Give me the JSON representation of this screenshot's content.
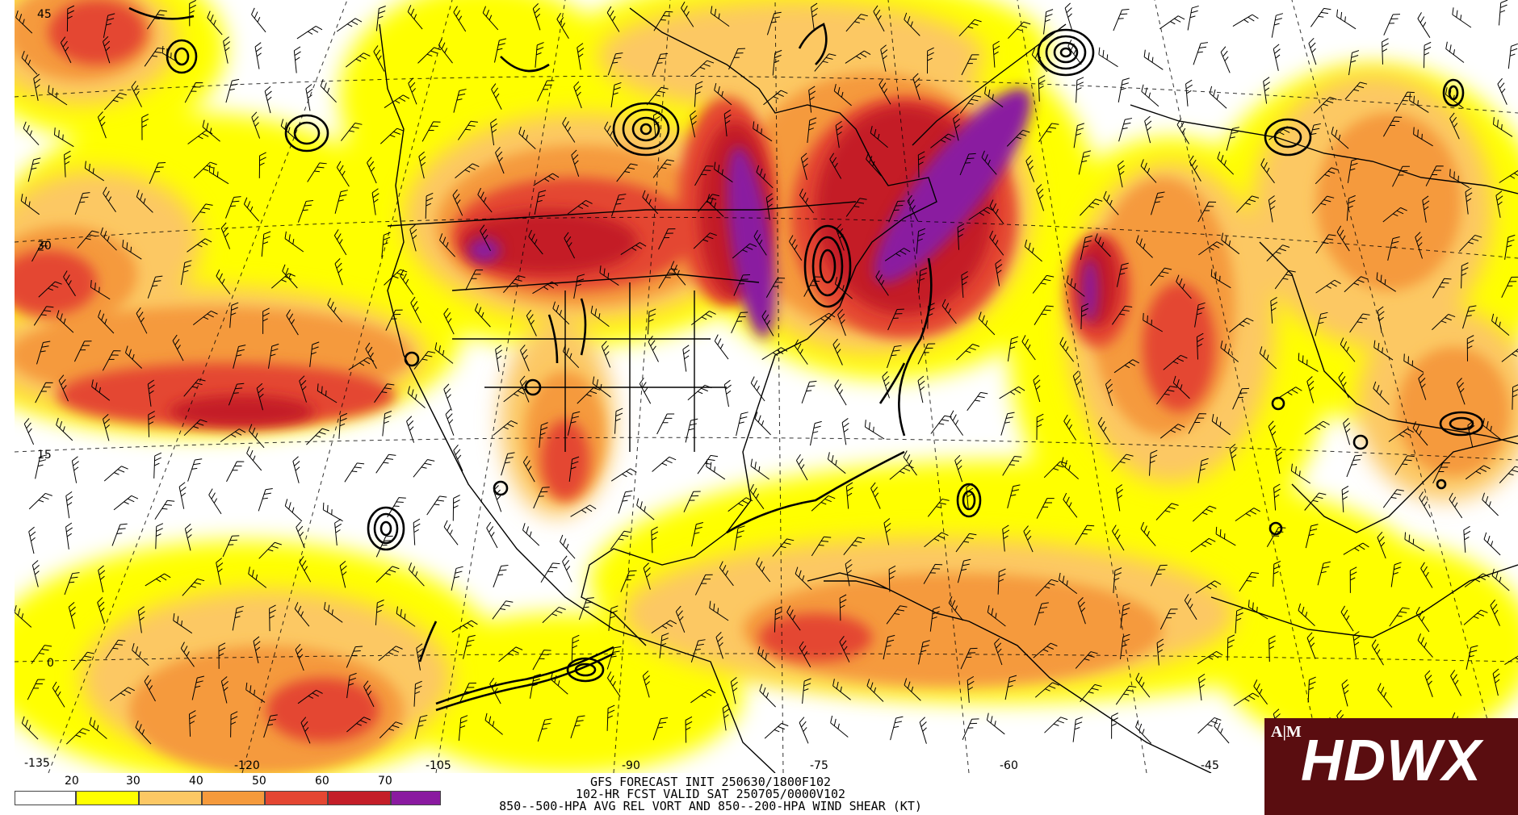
{
  "header_lines": [
    "GFS FORECAST INIT 250630/1800F102",
    "102-HR FCST VALID SAT 250705/0000V102",
    "850--500-HPA AVG REL VORT AND 850--200-HPA WIND SHEAR (KT)"
  ],
  "logo": {
    "text": "HDWX",
    "emblem": "A|M"
  },
  "legend": {
    "ticks": [
      "20",
      "30",
      "40",
      "50",
      "60",
      "70"
    ],
    "colors": [
      "#ffffff",
      "#ffff00",
      "#fcc864",
      "#f59a3c",
      "#e44632",
      "#c41e28",
      "#8a1aa0"
    ]
  },
  "lon_labels": [
    "-135",
    "-120",
    "-105",
    "-90",
    "-75",
    "-60",
    "-45"
  ],
  "lat_labels": [
    "45",
    "30",
    "15",
    "0"
  ],
  "shear_colors": {
    "yellow": "#ffff00",
    "orange_light": "#fcc864",
    "orange": "#f59a3c",
    "red": "#e44632",
    "dark_red": "#c41e28",
    "purple": "#8a1aa0"
  }
}
